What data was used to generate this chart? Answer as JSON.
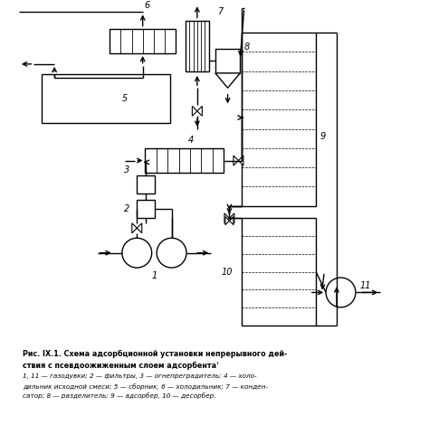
{
  "background_color": "#ffffff",
  "fig_width": 4.74,
  "fig_height": 4.7,
  "dpi": 100,
  "caption_line1": "Рис. IX.1. Схема адсорбционной установки непрерывного дей-",
  "caption_line2": "ствия с псевдоожиженным слоем адсорбентаʾ",
  "caption_line3": "1, 11 — газодувки; 2 — фильтры, 3 — огнепреградитель; 4 — холо-",
  "caption_line4": "дильник исходной смеси; 5 — сборник, 6 — холодильник; 7 — конден-",
  "caption_line5": "сатор; 8 — разделитель; 9 — адсорбер, 10 — десорбер."
}
